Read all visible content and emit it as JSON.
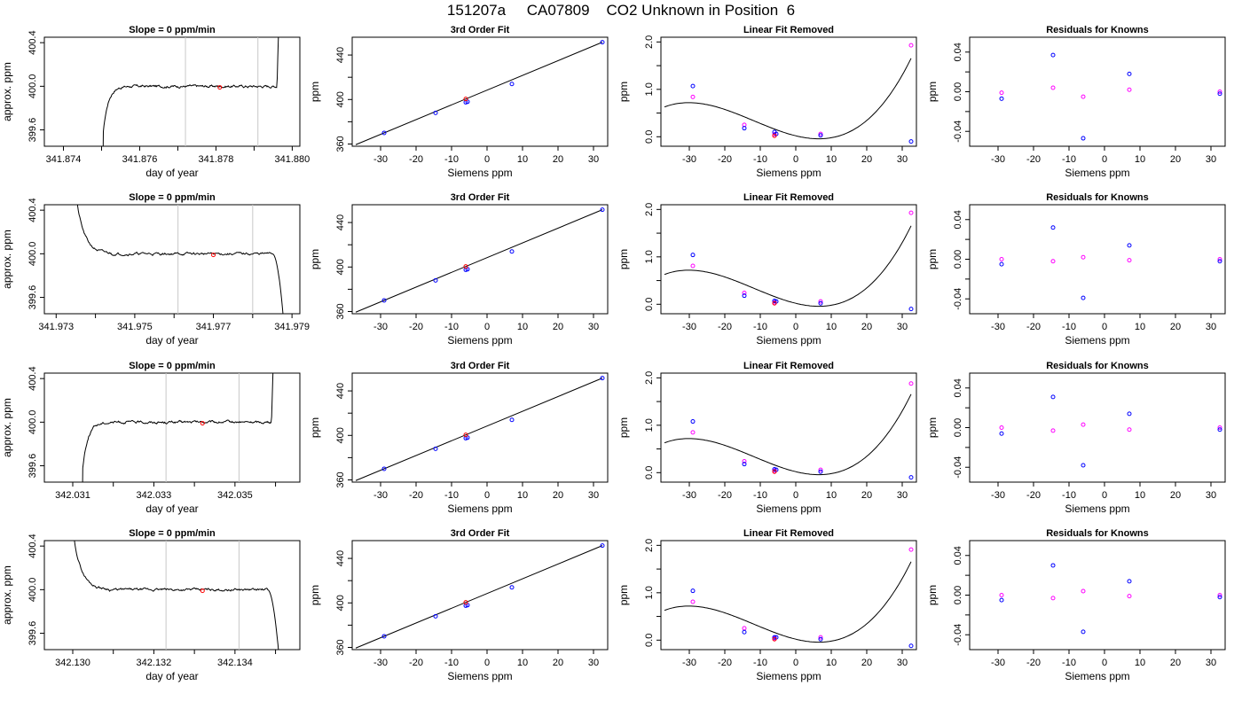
{
  "figure_title": "151207a     CA07809    CO2 Unknown in Position  6",
  "colors": {
    "axis": "#000000",
    "curve": "#000000",
    "marker_line": "#c8c8c8",
    "red": "#ff0000",
    "blue": "#0000ff",
    "magenta": "#ff00ff"
  },
  "chart_data": [
    {
      "type": "line",
      "row": 0,
      "panel": "time",
      "title": "Slope =  0  ppm/min",
      "xlabel": "day of year",
      "ylabel": "approx. ppm",
      "xlim": [
        341.8735,
        341.8802
      ],
      "ylim": [
        399.45,
        400.45
      ],
      "xticks": [
        341.874,
        341.876,
        341.878,
        341.88
      ],
      "xtick_labels": [
        "341.874",
        "341.876",
        "341.878",
        "341.880"
      ],
      "xminor": [
        341.875,
        341.877,
        341.879
      ],
      "yticks": [
        399.6,
        400.0,
        400.4
      ],
      "ytick_labels": [
        "399.6",
        "400.0",
        "400.4"
      ],
      "vlines": [
        341.8772,
        341.8791
      ],
      "red_point": [
        341.8781,
        399.99
      ],
      "level": 400.0,
      "curve": {
        "x_start": 341.875,
        "x_end": 341.8797,
        "rise": [
          0.0007,
          0.0
        ],
        "drop": null,
        "spike": [
          341.8796,
          341.8797
        ]
      }
    },
    {
      "type": "line",
      "row": 0,
      "panel": "fit",
      "title": "3rd Order Fit",
      "xlabel": "Siemens ppm",
      "ylabel": "ppm",
      "xlim": [
        -38,
        34
      ],
      "ylim": [
        358,
        456
      ],
      "xticks": [
        -30,
        -20,
        -10,
        0,
        10,
        20,
        30
      ],
      "xtick_labels": [
        "-30",
        "-20",
        "-10",
        "0",
        "10",
        "20",
        "30"
      ],
      "yticks": [
        360,
        400,
        440
      ],
      "ytick_labels": [
        "360",
        "400",
        "440"
      ],
      "yminor": [
        380,
        420
      ],
      "points_x": [
        -29,
        -14.5,
        -6,
        -5.5,
        7,
        32.5
      ],
      "points_y": [
        370,
        388,
        397.5,
        398,
        414,
        451.5
      ],
      "red_x": -6
    },
    {
      "type": "scatter",
      "row": 0,
      "panel": "linfit",
      "title": "Linear Fit Removed",
      "xlabel": "Siemens ppm",
      "ylabel": "ppm",
      "xlim": [
        -38,
        34
      ],
      "ylim": [
        -0.2,
        2.1
      ],
      "xticks": [
        -30,
        -20,
        -10,
        0,
        10,
        20,
        30
      ],
      "xtick_labels": [
        "-30",
        "-20",
        "-10",
        "0",
        "10",
        "20",
        "30"
      ],
      "yticks": [
        0.0,
        1.0,
        2.0
      ],
      "ytick_labels": [
        "0.0",
        "1.0",
        "2.0"
      ],
      "yminor": [
        0.5,
        1.5
      ],
      "blue_x": [
        -29,
        -14.5,
        -6,
        -5.5,
        7,
        32.5
      ],
      "blue_y": [
        1.07,
        0.18,
        0.1,
        0.06,
        0.03,
        -0.1
      ],
      "magenta_x": [
        -29,
        -14.5,
        -6,
        7,
        32.5
      ],
      "magenta_y": [
        0.84,
        0.25,
        0.05,
        0.06,
        1.93
      ],
      "red_x": -6,
      "red_y": 0.02,
      "poly": [
        0.02,
        -0.0182,
        0.0011,
        3.1e-05
      ]
    },
    {
      "type": "scatter",
      "row": 0,
      "panel": "resid",
      "title": "Residuals for Knowns",
      "xlabel": "Siemens ppm",
      "ylabel": "ppm",
      "xlim": [
        -38,
        34
      ],
      "ylim": [
        -0.055,
        0.055
      ],
      "xticks": [
        -30,
        -20,
        -10,
        0,
        10,
        20,
        30
      ],
      "xtick_labels": [
        "-30",
        "-20",
        "-10",
        "0",
        "10",
        "20",
        "30"
      ],
      "yticks": [
        -0.04,
        0.0,
        0.04
      ],
      "ytick_labels": [
        "-0.04",
        "0.00",
        "0.04"
      ],
      "yminor": [
        -0.02,
        0.02
      ],
      "blue_x": [
        -29,
        -14.5,
        -6,
        7,
        32.5
      ],
      "blue_y": [
        -0.007,
        0.037,
        -0.047,
        0.018,
        -0.002
      ],
      "magenta_x": [
        -29,
        -14.5,
        -6,
        7,
        32.5
      ],
      "magenta_y": [
        -0.001,
        0.004,
        -0.005,
        0.002,
        0.0
      ]
    },
    {
      "type": "line",
      "row": 1,
      "panel": "time",
      "title": "Slope =  0  ppm/min",
      "xlabel": "day of year",
      "ylabel": "approx. ppm",
      "xlim": [
        341.9727,
        341.9792
      ],
      "ylim": [
        399.45,
        400.45
      ],
      "xticks": [
        341.973,
        341.975,
        341.977,
        341.979
      ],
      "xtick_labels": [
        "341.973",
        "341.975",
        "341.977",
        "341.979"
      ],
      "xminor": [
        341.974,
        341.976,
        341.978
      ],
      "yticks": [
        399.6,
        400.0,
        400.4
      ],
      "ytick_labels": [
        "399.6",
        "400.0",
        "400.4"
      ],
      "vlines": [
        341.9761,
        341.978
      ],
      "red_point": [
        341.977,
        399.99
      ],
      "level": 400.0,
      "curve": {
        "x_start": 341.9734,
        "x_end": 341.9789,
        "rise": null,
        "drop": [
          341.9785,
          341.9789
        ],
        "spike": null,
        "decay": [
          341.9734,
          341.9744
        ]
      }
    },
    {
      "type": "line",
      "row": 1,
      "panel": "fit",
      "title": "3rd Order Fit",
      "xlabel": "Siemens ppm",
      "ylabel": "ppm",
      "xlim": [
        -38,
        34
      ],
      "ylim": [
        358,
        456
      ],
      "xticks": [
        -30,
        -20,
        -10,
        0,
        10,
        20,
        30
      ],
      "xtick_labels": [
        "-30",
        "-20",
        "-10",
        "0",
        "10",
        "20",
        "30"
      ],
      "yticks": [
        360,
        400,
        440
      ],
      "ytick_labels": [
        "360",
        "400",
        "440"
      ],
      "yminor": [
        380,
        420
      ],
      "points_x": [
        -29,
        -14.5,
        -6,
        -5.5,
        7,
        32.5
      ],
      "points_y": [
        370,
        388,
        397.5,
        398,
        414,
        451.5
      ],
      "red_x": -6
    },
    {
      "type": "scatter",
      "row": 1,
      "panel": "linfit",
      "title": "Linear Fit Removed",
      "xlabel": "Siemens ppm",
      "ylabel": "ppm",
      "xlim": [
        -38,
        34
      ],
      "ylim": [
        -0.2,
        2.1
      ],
      "xticks": [
        -30,
        -20,
        -10,
        0,
        10,
        20,
        30
      ],
      "xtick_labels": [
        "-30",
        "-20",
        "-10",
        "0",
        "10",
        "20",
        "30"
      ],
      "yticks": [
        0.0,
        1.0,
        2.0
      ],
      "ytick_labels": [
        "0.0",
        "1.0",
        "2.0"
      ],
      "yminor": [
        0.5,
        1.5
      ],
      "blue_x": [
        -29,
        -14.5,
        -6,
        -5.5,
        7,
        32.5
      ],
      "blue_y": [
        1.04,
        0.18,
        0.07,
        0.06,
        0.02,
        -0.1
      ],
      "magenta_x": [
        -29,
        -14.5,
        -6,
        7,
        32.5
      ],
      "magenta_y": [
        0.81,
        0.24,
        0.04,
        0.06,
        1.93
      ],
      "red_x": -6,
      "red_y": 0.02,
      "poly": [
        0.02,
        -0.0182,
        0.0011,
        3.1e-05
      ]
    },
    {
      "type": "scatter",
      "row": 1,
      "panel": "resid",
      "title": "Residuals for Knowns",
      "xlabel": "Siemens ppm",
      "ylabel": "ppm",
      "xlim": [
        -38,
        34
      ],
      "ylim": [
        -0.055,
        0.055
      ],
      "xticks": [
        -30,
        -20,
        -10,
        0,
        10,
        20,
        30
      ],
      "xtick_labels": [
        "-30",
        "-20",
        "-10",
        "0",
        "10",
        "20",
        "30"
      ],
      "yticks": [
        -0.04,
        0.0,
        0.04
      ],
      "ytick_labels": [
        "-0.04",
        "0.00",
        "0.04"
      ],
      "yminor": [
        -0.02,
        0.02
      ],
      "blue_x": [
        -29,
        -14.5,
        -6,
        7,
        32.5
      ],
      "blue_y": [
        -0.005,
        0.032,
        -0.039,
        0.014,
        -0.002
      ],
      "magenta_x": [
        -29,
        -14.5,
        -6,
        7,
        32.5
      ],
      "magenta_y": [
        0.0,
        -0.002,
        0.002,
        -0.001,
        0.0
      ]
    },
    {
      "type": "line",
      "row": 2,
      "panel": "time",
      "title": "Slope =  0  ppm/min",
      "xlabel": "day of year",
      "ylabel": "approx. ppm",
      "xlim": [
        342.0303,
        342.0366
      ],
      "ylim": [
        399.45,
        400.45
      ],
      "xticks": [
        342.031,
        342.033,
        342.035
      ],
      "xtick_labels": [
        "342.031",
        "342.033",
        "342.035"
      ],
      "xminor": [
        342.032,
        342.034,
        342.036
      ],
      "yticks": [
        399.6,
        400.0,
        400.4
      ],
      "ytick_labels": [
        "399.6",
        "400.0",
        "400.4"
      ],
      "vlines": [
        342.0333,
        342.0351
      ],
      "red_point": [
        342.0342,
        399.99
      ],
      "level": 400.0,
      "curve": {
        "x_start": 342.0312,
        "x_end": 342.036,
        "rise": [
          0.0007,
          0.0
        ],
        "drop": null,
        "spike": [
          342.0359,
          342.036
        ]
      }
    },
    {
      "type": "line",
      "row": 2,
      "panel": "fit",
      "title": "3rd Order Fit",
      "xlabel": "Siemens ppm",
      "ylabel": "ppm",
      "xlim": [
        -38,
        34
      ],
      "ylim": [
        358,
        456
      ],
      "xticks": [
        -30,
        -20,
        -10,
        0,
        10,
        20,
        30
      ],
      "xtick_labels": [
        "-30",
        "-20",
        "-10",
        "0",
        "10",
        "20",
        "30"
      ],
      "yticks": [
        360,
        400,
        440
      ],
      "ytick_labels": [
        "360",
        "400",
        "440"
      ],
      "yminor": [
        380,
        420
      ],
      "points_x": [
        -29,
        -14.5,
        -6,
        -5.5,
        7,
        32.5
      ],
      "points_y": [
        370,
        388,
        397.5,
        398,
        414,
        451.5
      ],
      "red_x": -6
    },
    {
      "type": "scatter",
      "row": 2,
      "panel": "linfit",
      "title": "Linear Fit Removed",
      "xlabel": "Siemens ppm",
      "ylabel": "ppm",
      "xlim": [
        -38,
        34
      ],
      "ylim": [
        -0.2,
        2.1
      ],
      "xticks": [
        -30,
        -20,
        -10,
        0,
        10,
        20,
        30
      ],
      "xtick_labels": [
        "-30",
        "-20",
        "-10",
        "0",
        "10",
        "20",
        "30"
      ],
      "yticks": [
        0.0,
        1.0,
        2.0
      ],
      "ytick_labels": [
        "0.0",
        "1.0",
        "2.0"
      ],
      "yminor": [
        0.5,
        1.5
      ],
      "blue_x": [
        -29,
        -14.5,
        -6,
        -5.5,
        7,
        32.5
      ],
      "blue_y": [
        1.08,
        0.18,
        0.07,
        0.06,
        0.02,
        -0.1
      ],
      "magenta_x": [
        -29,
        -14.5,
        -6,
        7,
        32.5
      ],
      "magenta_y": [
        0.85,
        0.24,
        0.04,
        0.06,
        1.88
      ],
      "red_x": -6,
      "red_y": 0.02,
      "poly": [
        0.02,
        -0.0182,
        0.0011,
        3.1e-05
      ]
    },
    {
      "type": "scatter",
      "row": 2,
      "panel": "resid",
      "title": "Residuals for Knowns",
      "xlabel": "Siemens ppm",
      "ylabel": "ppm",
      "xlim": [
        -38,
        34
      ],
      "ylim": [
        -0.055,
        0.055
      ],
      "xticks": [
        -30,
        -20,
        -10,
        0,
        10,
        20,
        30
      ],
      "xtick_labels": [
        "-30",
        "-20",
        "-10",
        "0",
        "10",
        "20",
        "30"
      ],
      "yticks": [
        -0.04,
        0.0,
        0.04
      ],
      "ytick_labels": [
        "-0.04",
        "0.00",
        "0.04"
      ],
      "yminor": [
        -0.02,
        0.02
      ],
      "blue_x": [
        -29,
        -14.5,
        -6,
        7,
        32.5
      ],
      "blue_y": [
        -0.006,
        0.031,
        -0.038,
        0.014,
        -0.002
      ],
      "magenta_x": [
        -29,
        -14.5,
        -6,
        7,
        32.5
      ],
      "magenta_y": [
        0.0,
        -0.003,
        0.003,
        -0.002,
        0.0
      ]
    },
    {
      "type": "line",
      "row": 3,
      "panel": "time",
      "title": "Slope =  0  ppm/min",
      "xlabel": "day of year",
      "ylabel": "approx. ppm",
      "xlim": [
        342.1293,
        342.1356
      ],
      "ylim": [
        399.45,
        400.45
      ],
      "xticks": [
        342.13,
        342.132,
        342.134
      ],
      "xtick_labels": [
        "342.130",
        "342.132",
        "342.134"
      ],
      "xminor": [
        342.131,
        342.133,
        342.135
      ],
      "yticks": [
        399.6,
        400.0,
        400.4
      ],
      "ytick_labels": [
        "399.6",
        "400.0",
        "400.4"
      ],
      "vlines": [
        342.1323,
        342.1341
      ],
      "red_point": [
        342.1332,
        399.99
      ],
      "level": 400.0,
      "curve": {
        "x_start": 342.1299,
        "x_end": 342.1352,
        "rise": null,
        "drop": [
          342.1348,
          342.1352
        ],
        "spike": null,
        "decay": [
          342.1299,
          342.1309
        ]
      }
    },
    {
      "type": "line",
      "row": 3,
      "panel": "fit",
      "title": "3rd Order Fit",
      "xlabel": "Siemens ppm",
      "ylabel": "ppm",
      "xlim": [
        -38,
        34
      ],
      "ylim": [
        358,
        456
      ],
      "xticks": [
        -30,
        -20,
        -10,
        0,
        10,
        20,
        30
      ],
      "xtick_labels": [
        "-30",
        "-20",
        "-10",
        "0",
        "10",
        "20",
        "30"
      ],
      "yticks": [
        360,
        400,
        440
      ],
      "ytick_labels": [
        "360",
        "400",
        "440"
      ],
      "yminor": [
        380,
        420
      ],
      "points_x": [
        -29,
        -14.5,
        -6,
        -5.5,
        7,
        32.5
      ],
      "points_y": [
        370,
        388,
        397.5,
        398,
        414,
        451.5
      ],
      "red_x": -6
    },
    {
      "type": "scatter",
      "row": 3,
      "panel": "linfit",
      "title": "Linear Fit Removed",
      "xlabel": "Siemens ppm",
      "ylabel": "ppm",
      "xlim": [
        -38,
        34
      ],
      "ylim": [
        -0.2,
        2.1
      ],
      "xticks": [
        -30,
        -20,
        -10,
        0,
        10,
        20,
        30
      ],
      "xtick_labels": [
        "-30",
        "-20",
        "-10",
        "0",
        "10",
        "20",
        "30"
      ],
      "yticks": [
        0.0,
        1.0,
        2.0
      ],
      "ytick_labels": [
        "0.0",
        "1.0",
        "2.0"
      ],
      "yminor": [
        0.5,
        1.5
      ],
      "blue_x": [
        -29,
        -14.5,
        -6,
        -5.5,
        7,
        32.5
      ],
      "blue_y": [
        1.04,
        0.17,
        0.06,
        0.06,
        0.02,
        -0.12
      ],
      "magenta_x": [
        -29,
        -14.5,
        -6,
        7,
        32.5
      ],
      "magenta_y": [
        0.81,
        0.25,
        0.04,
        0.06,
        1.91
      ],
      "red_x": -6,
      "red_y": 0.02,
      "poly": [
        0.02,
        -0.0182,
        0.0011,
        3.1e-05
      ]
    },
    {
      "type": "scatter",
      "row": 3,
      "panel": "resid",
      "title": "Residuals for Knowns",
      "xlabel": "Siemens ppm",
      "ylabel": "ppm",
      "xlim": [
        -38,
        34
      ],
      "ylim": [
        -0.055,
        0.055
      ],
      "xticks": [
        -30,
        -20,
        -10,
        0,
        10,
        20,
        30
      ],
      "xtick_labels": [
        "-30",
        "-20",
        "-10",
        "0",
        "10",
        "20",
        "30"
      ],
      "yticks": [
        -0.04,
        0.0,
        0.04
      ],
      "ytick_labels": [
        "-0.04",
        "0.00",
        "0.04"
      ],
      "yminor": [
        -0.02,
        0.02
      ],
      "blue_x": [
        -29,
        -14.5,
        -6,
        7,
        32.5
      ],
      "blue_y": [
        -0.005,
        0.03,
        -0.037,
        0.014,
        -0.002
      ],
      "magenta_x": [
        -29,
        -14.5,
        -6,
        7,
        32.5
      ],
      "magenta_y": [
        0.0,
        -0.003,
        0.004,
        -0.001,
        0.0
      ]
    }
  ]
}
